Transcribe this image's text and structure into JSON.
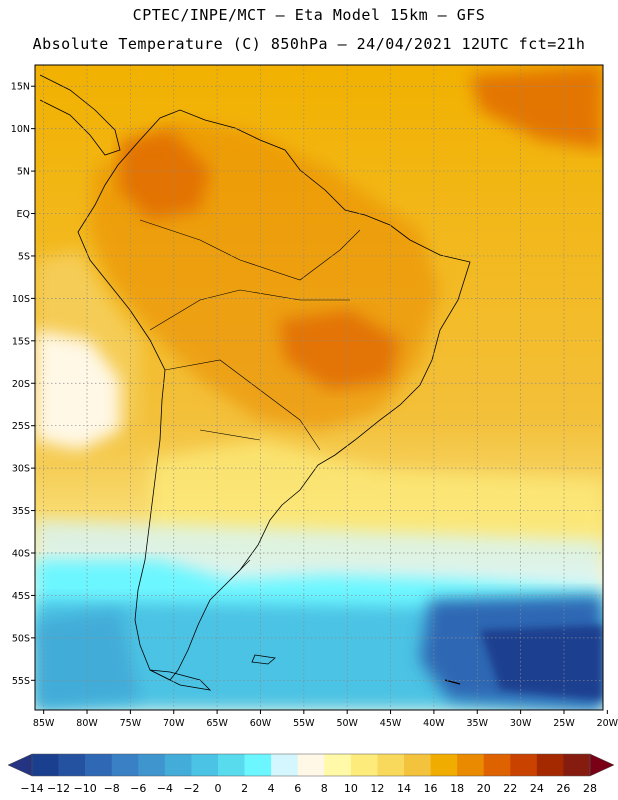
{
  "header": {
    "line1": "CPTEC/INPE/MCT –  Eta Model 15km – GFS",
    "line2": "Absolute Temperature (C) 850hPa – 24/04/2021 12UTC fct=21h"
  },
  "map": {
    "lat_labels": [
      "15N",
      "10N",
      "5N",
      "EQ",
      "5S",
      "10S",
      "15S",
      "20S",
      "25S",
      "30S",
      "35S",
      "40S",
      "45S",
      "50S",
      "55S"
    ],
    "lon_labels": [
      "85W",
      "80W",
      "75W",
      "70W",
      "65W",
      "60W",
      "55W",
      "50W",
      "45W",
      "40W",
      "35W",
      "30W",
      "25W",
      "20W"
    ],
    "lat_range": [
      17.5,
      -58.5
    ],
    "lon_range": [
      -86,
      -20.5
    ]
  },
  "colorbar": {
    "labels": [
      "-14",
      "-12",
      "-10",
      "-8",
      "-6",
      "-4",
      "-2",
      "0",
      "2",
      "4",
      "6",
      "8",
      "10",
      "12",
      "14",
      "16",
      "18",
      "20",
      "22",
      "24",
      "26",
      "28"
    ],
    "colors": [
      "#1b3f8f",
      "#2452a0",
      "#2f68b4",
      "#3a80c4",
      "#3f96cf",
      "#43acd8",
      "#4bc3e4",
      "#59dbee",
      "#6cf6ff",
      "#d4f6ff",
      "#fff8e6",
      "#fff9a8",
      "#fdec7b",
      "#f9d95b",
      "#f4c33e",
      "#f0ad00",
      "#e98a00",
      "#df6200",
      "#c94200",
      "#a42800",
      "#861c10"
    ],
    "under_color": "#243482",
    "over_color": "#7a0018"
  }
}
